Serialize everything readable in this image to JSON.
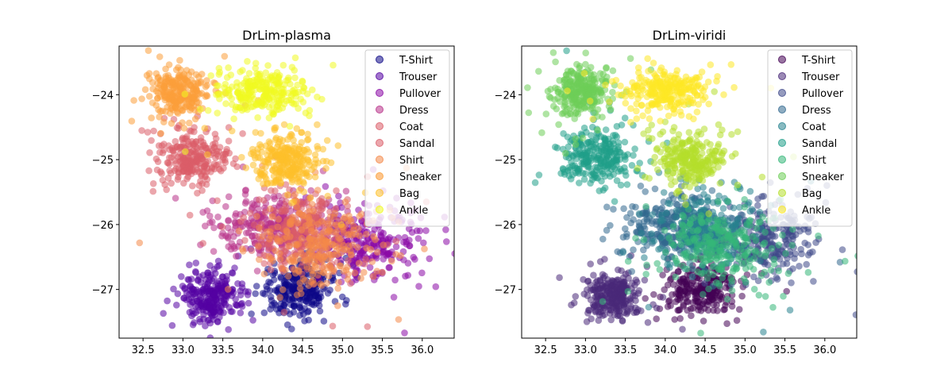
{
  "chart_data": [
    {
      "type": "scatter",
      "title": "DrLim-plasma",
      "colormap": "plasma",
      "xlim": [
        32.2,
        36.4
      ],
      "ylim": [
        -27.75,
        -23.25
      ],
      "xticks": [
        32.5,
        33.0,
        33.5,
        34.0,
        34.5,
        35.0,
        35.5,
        36.0
      ],
      "xtick_labels": [
        "32.5",
        "33.0",
        "33.5",
        "34.0",
        "34.5",
        "35.0",
        "35.5",
        "36.0"
      ],
      "yticks": [
        -24,
        -25,
        -26,
        -27
      ],
      "ytick_labels": [
        "−24",
        "−25",
        "−26",
        "−27"
      ],
      "legend_location": "top-right",
      "series": [
        {
          "name": "T-Shirt",
          "color": "#0d0887",
          "center": [
            34.45,
            -27.0
          ],
          "spread": [
            0.22,
            0.2
          ]
        },
        {
          "name": "Trouser",
          "color": "#5302a3",
          "center": [
            33.35,
            -27.1
          ],
          "spread": [
            0.18,
            0.18
          ]
        },
        {
          "name": "Pullover",
          "color": "#8b0aa5",
          "center": [
            35.3,
            -26.25
          ],
          "spread": [
            0.32,
            0.3
          ]
        },
        {
          "name": "Dress",
          "color": "#b83289",
          "center": [
            34.1,
            -26.0
          ],
          "spread": [
            0.35,
            0.25
          ]
        },
        {
          "name": "Coat",
          "color": "#db5c68",
          "center": [
            34.5,
            -26.1
          ],
          "spread": [
            0.3,
            0.3
          ]
        },
        {
          "name": "Sandal",
          "color": "#db5c68",
          "center": [
            33.15,
            -24.95
          ],
          "spread": [
            0.22,
            0.2
          ]
        },
        {
          "name": "Shirt",
          "color": "#f48849",
          "center": [
            34.75,
            -26.35
          ],
          "spread": [
            0.4,
            0.3
          ]
        },
        {
          "name": "Sneaker",
          "color": "#fb9f3a",
          "center": [
            32.95,
            -23.95
          ],
          "spread": [
            0.18,
            0.18
          ]
        },
        {
          "name": "Bag",
          "color": "#fec029",
          "center": [
            34.3,
            -25.0
          ],
          "spread": [
            0.22,
            0.2
          ]
        },
        {
          "name": "Ankle",
          "color": "#f0f921",
          "center": [
            34.0,
            -23.95
          ],
          "spread": [
            0.28,
            0.18
          ]
        }
      ]
    },
    {
      "type": "scatter",
      "title": "DrLim-viridi",
      "colormap": "viridis",
      "xlim": [
        32.2,
        36.4
      ],
      "ylim": [
        -27.75,
        -23.25
      ],
      "xticks": [
        32.5,
        33.0,
        33.5,
        34.0,
        34.5,
        35.0,
        35.5,
        36.0
      ],
      "xtick_labels": [
        "32.5",
        "33.0",
        "33.5",
        "34.0",
        "34.5",
        "35.0",
        "35.5",
        "36.0"
      ],
      "yticks": [
        -24,
        -25,
        -26,
        -27
      ],
      "ytick_labels": [
        "−24",
        "−25",
        "−26",
        "−27"
      ],
      "legend_location": "top-right",
      "series": [
        {
          "name": "T-Shirt",
          "color": "#440154",
          "center": [
            34.45,
            -27.0
          ],
          "spread": [
            0.22,
            0.2
          ]
        },
        {
          "name": "Trouser",
          "color": "#482878",
          "center": [
            33.35,
            -27.1
          ],
          "spread": [
            0.18,
            0.18
          ]
        },
        {
          "name": "Pullover",
          "color": "#3e4989",
          "center": [
            35.3,
            -26.25
          ],
          "spread": [
            0.32,
            0.3
          ]
        },
        {
          "name": "Dress",
          "color": "#31688e",
          "center": [
            34.1,
            -26.0
          ],
          "spread": [
            0.35,
            0.25
          ]
        },
        {
          "name": "Coat",
          "color": "#26828e",
          "center": [
            34.5,
            -26.1
          ],
          "spread": [
            0.3,
            0.3
          ]
        },
        {
          "name": "Sandal",
          "color": "#1f9e89",
          "center": [
            33.15,
            -24.95
          ],
          "spread": [
            0.22,
            0.2
          ]
        },
        {
          "name": "Shirt",
          "color": "#35b779",
          "center": [
            34.75,
            -26.35
          ],
          "spread": [
            0.4,
            0.3
          ]
        },
        {
          "name": "Sneaker",
          "color": "#6ece58",
          "center": [
            32.95,
            -23.95
          ],
          "spread": [
            0.18,
            0.18
          ]
        },
        {
          "name": "Bag",
          "color": "#b5de2b",
          "center": [
            34.3,
            -25.0
          ],
          "spread": [
            0.22,
            0.2
          ]
        },
        {
          "name": "Ankle",
          "color": "#fde725",
          "center": [
            34.0,
            -23.95
          ],
          "spread": [
            0.28,
            0.18
          ]
        }
      ]
    }
  ]
}
